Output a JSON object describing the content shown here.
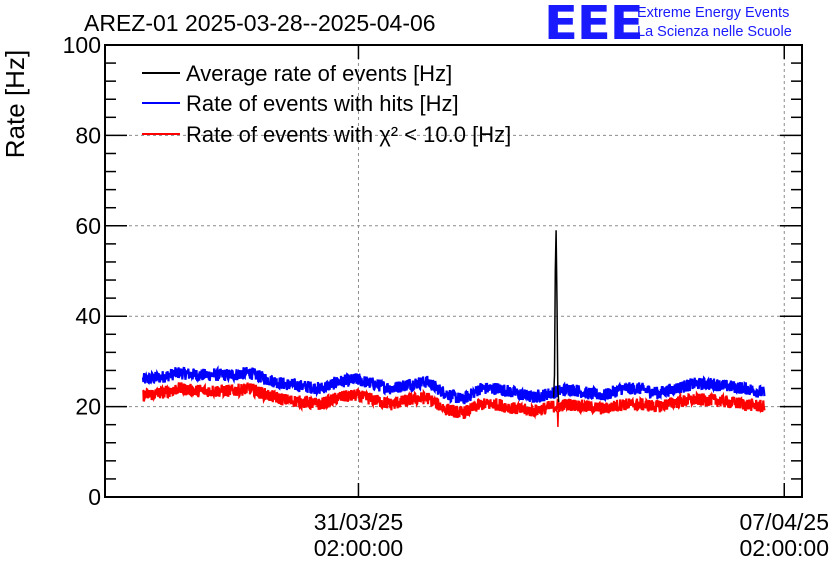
{
  "title": "AREZ-01 2025-03-28--2025-04-06",
  "logo": {
    "mark": "EEE",
    "line1": "Extreme Energy Events",
    "line2": "La Scienza nelle Scuole",
    "color": "#1a1aff"
  },
  "chart_data": {
    "type": "line",
    "ylabel": "Rate [Hz]",
    "ylim": [
      0,
      100
    ],
    "y_ticks": [
      "0",
      "20",
      "40",
      "60",
      "80",
      "100"
    ],
    "x_ticks": [
      {
        "date": "31/03/25",
        "time": "02:00:00"
      },
      {
        "date": "07/04/25",
        "time": "02:00:00"
      }
    ],
    "xlim_days": [
      "2025-03-26T22:00",
      "2025-04-07T09:00"
    ],
    "grid": true,
    "legend_position": "top-left",
    "legend": [
      {
        "name": "Average rate of events [Hz]",
        "color": "#000000"
      },
      {
        "name": "Rate of events with hits [Hz]",
        "color": "#0000ff"
      },
      {
        "name": "Rate of events with χ² < 10.0 [Hz]",
        "color": "#ff0000"
      }
    ],
    "series": [
      {
        "name": "Average rate of events [Hz]",
        "color": "#000000",
        "x": [
          "2025-04-03T07:00",
          "2025-04-03T07:20",
          "2025-04-03T07:40",
          "2025-04-03T08:00",
          "2025-04-03T08:20",
          "2025-04-03T08:40",
          "2025-04-03T09:00"
        ],
        "values": [
          22,
          27,
          50,
          59,
          43,
          24,
          21
        ]
      },
      {
        "name": "Rate of events with hits [Hz]",
        "color": "#0000ff",
        "x": [
          "2025-03-27T13:00",
          "2025-03-27T20:00",
          "2025-03-28T03:00",
          "2025-03-28T10:00",
          "2025-03-28T17:00",
          "2025-03-29T00:00",
          "2025-03-29T07:00",
          "2025-03-29T14:00",
          "2025-03-29T21:00",
          "2025-03-30T04:00",
          "2025-03-30T11:00",
          "2025-03-30T18:00",
          "2025-03-31T01:00",
          "2025-03-31T08:00",
          "2025-03-31T15:00",
          "2025-03-31T22:00",
          "2025-04-01T05:00",
          "2025-04-01T12:00",
          "2025-04-01T19:00",
          "2025-04-02T02:00",
          "2025-04-02T09:00",
          "2025-04-02T16:00",
          "2025-04-02T23:00",
          "2025-04-03T06:00",
          "2025-04-03T13:00",
          "2025-04-03T20:00",
          "2025-04-04T03:00",
          "2025-04-04T10:00",
          "2025-04-04T17:00",
          "2025-04-05T00:00",
          "2025-04-05T07:00",
          "2025-04-05T14:00",
          "2025-04-05T21:00",
          "2025-04-06T04:00",
          "2025-04-06T11:00",
          "2025-04-06T18:00"
        ],
        "values": [
          26,
          26.5,
          27.5,
          27,
          27,
          27,
          27.5,
          26,
          25,
          24.5,
          24,
          25.5,
          26,
          25,
          24,
          25,
          25.5,
          23,
          21.5,
          24,
          24,
          23,
          22,
          23,
          24,
          23,
          22.5,
          24,
          24,
          23,
          24,
          25,
          25,
          24.5,
          24,
          23
        ]
      },
      {
        "name": "Rate of events with χ² < 10.0 [Hz]",
        "color": "#ff0000",
        "x": [
          "2025-03-27T13:00",
          "2025-03-27T20:00",
          "2025-03-28T03:00",
          "2025-03-28T10:00",
          "2025-03-28T17:00",
          "2025-03-29T00:00",
          "2025-03-29T07:00",
          "2025-03-29T14:00",
          "2025-03-29T21:00",
          "2025-03-30T04:00",
          "2025-03-30T11:00",
          "2025-03-30T18:00",
          "2025-03-31T01:00",
          "2025-03-31T08:00",
          "2025-03-31T15:00",
          "2025-03-31T22:00",
          "2025-04-01T05:00",
          "2025-04-01T12:00",
          "2025-04-01T19:00",
          "2025-04-02T02:00",
          "2025-04-02T09:00",
          "2025-04-02T16:00",
          "2025-04-02T23:00",
          "2025-04-03T06:00",
          "2025-04-03T13:00",
          "2025-04-03T20:00",
          "2025-04-04T03:00",
          "2025-04-04T10:00",
          "2025-04-04T17:00",
          "2025-04-05T00:00",
          "2025-04-05T07:00",
          "2025-04-05T14:00",
          "2025-04-05T21:00",
          "2025-04-06T04:00",
          "2025-04-06T11:00",
          "2025-04-06T18:00"
        ],
        "values": [
          22.5,
          23,
          24,
          23.5,
          23.5,
          23.5,
          24,
          22.5,
          21.5,
          21,
          20.5,
          22,
          22.5,
          21.5,
          20.5,
          21.5,
          22,
          19.5,
          18.5,
          20.5,
          20.5,
          19.5,
          19,
          20,
          20.5,
          20,
          19.5,
          20.5,
          20.5,
          20,
          21,
          21.5,
          21.5,
          21,
          20.5,
          20
        ]
      }
    ]
  }
}
